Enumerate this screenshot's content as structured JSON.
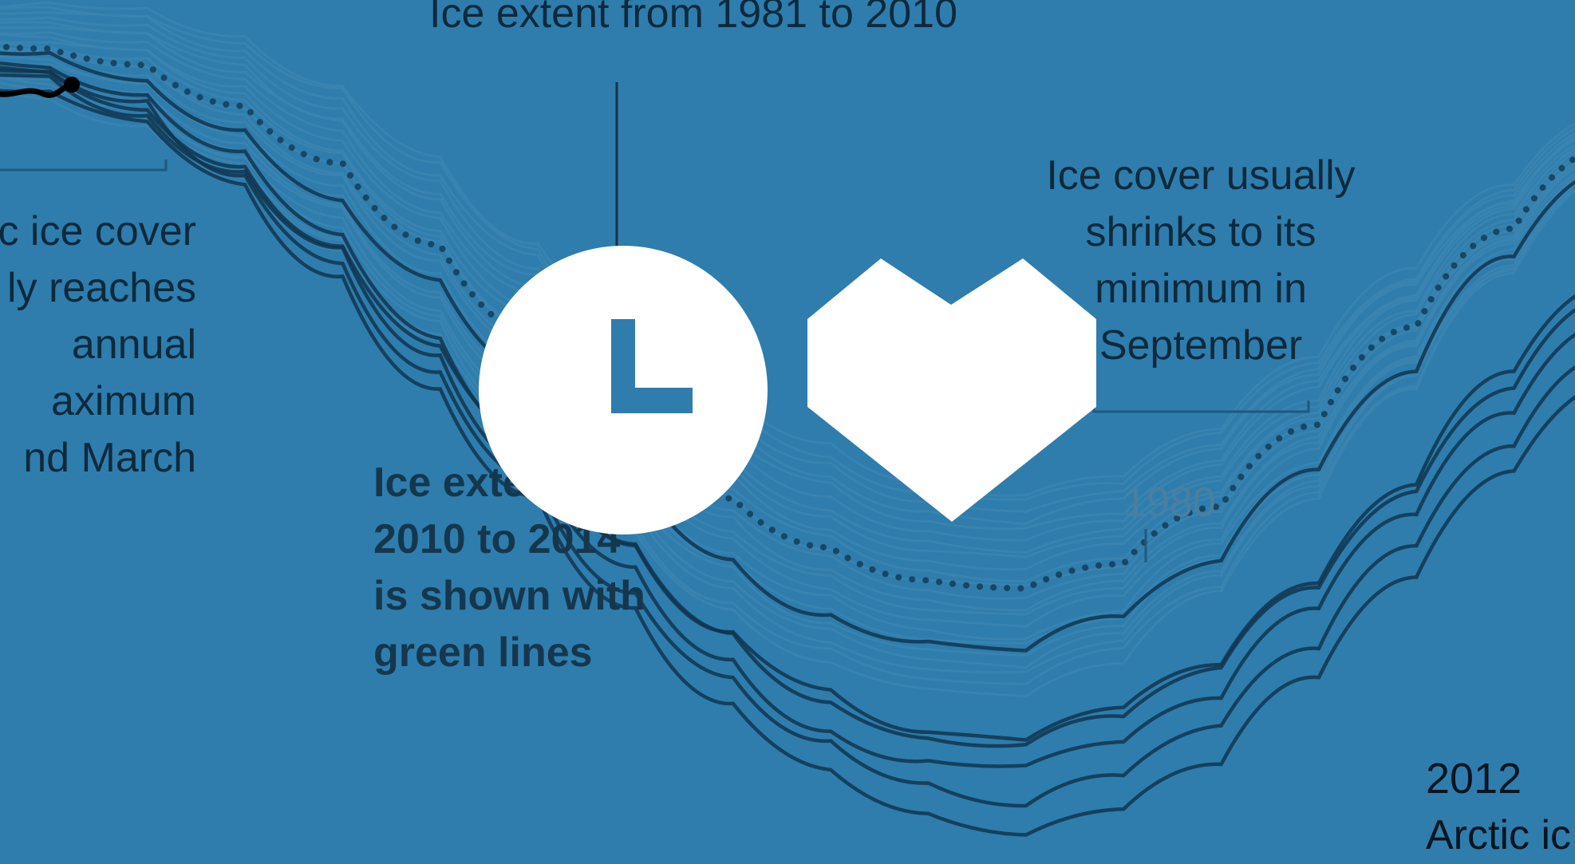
{
  "annotations": {
    "average_range": "Ice extent from 1981 to 2010",
    "max_note": [
      "c ice cover",
      "ly reaches",
      "annual",
      "aximum",
      "nd March"
    ],
    "min_note": [
      "Ice cover usually",
      "shrinks to its",
      "minimum in",
      "September"
    ],
    "recent_note": [
      "Ice exte",
      "2010 to 2014",
      "is shown with",
      "green lines"
    ],
    "label_1980": "1980",
    "label_2012": "2012",
    "label_2012_sub": "Arctic ic"
  },
  "controls": {
    "clock_icon": "clock-icon",
    "heart_icon": "heart-icon"
  },
  "colors": {
    "background": "#2e7dad",
    "faint_lines": "#3a84b0",
    "dark_lines": "#0f3550",
    "dotted_average": "#164766",
    "overlay_icons": "#ffffff"
  },
  "chart_data": {
    "type": "line",
    "title": "",
    "xlabel": "",
    "ylabel": "",
    "series": [
      {
        "values": [
          96,
          95,
          92,
          86,
          78,
          68,
          56,
          44,
          34,
          27,
          23,
          22,
          26,
          33,
          44,
          57,
          70,
          82
        ]
      },
      {
        "values": [
          94,
          93,
          89,
          82,
          72,
          60,
          47,
          35,
          24,
          17,
          13,
          12,
          15,
          21,
          31,
          43,
          56,
          68
        ]
      },
      {
        "values": [
          95,
          94,
          90,
          83,
          73,
          61,
          48,
          35,
          24,
          16,
          12,
          11,
          14,
          20,
          30,
          42,
          54,
          65
        ]
      },
      {
        "values": [
          93,
          92,
          88,
          81,
          71,
          59,
          45,
          32,
          21,
          13,
          9,
          8,
          11,
          17,
          27,
          39,
          51,
          62
        ]
      },
      {
        "values": [
          94,
          93,
          89,
          81,
          70,
          57,
          43,
          30,
          19,
          11,
          6,
          4,
          7,
          13,
          23,
          35,
          47,
          58
        ]
      },
      {
        "values": [
          92,
          91,
          87,
          79,
          68,
          55,
          41,
          28,
          16,
          8,
          2,
          0,
          3,
          9,
          19,
          31,
          44,
          55
        ]
      }
    ],
    "average_values": [
      97,
      96,
      94,
      89,
      82,
      72,
      61,
      50,
      41,
      35,
      31,
      30,
      33,
      40,
      50,
      62,
      74,
      84
    ]
  }
}
